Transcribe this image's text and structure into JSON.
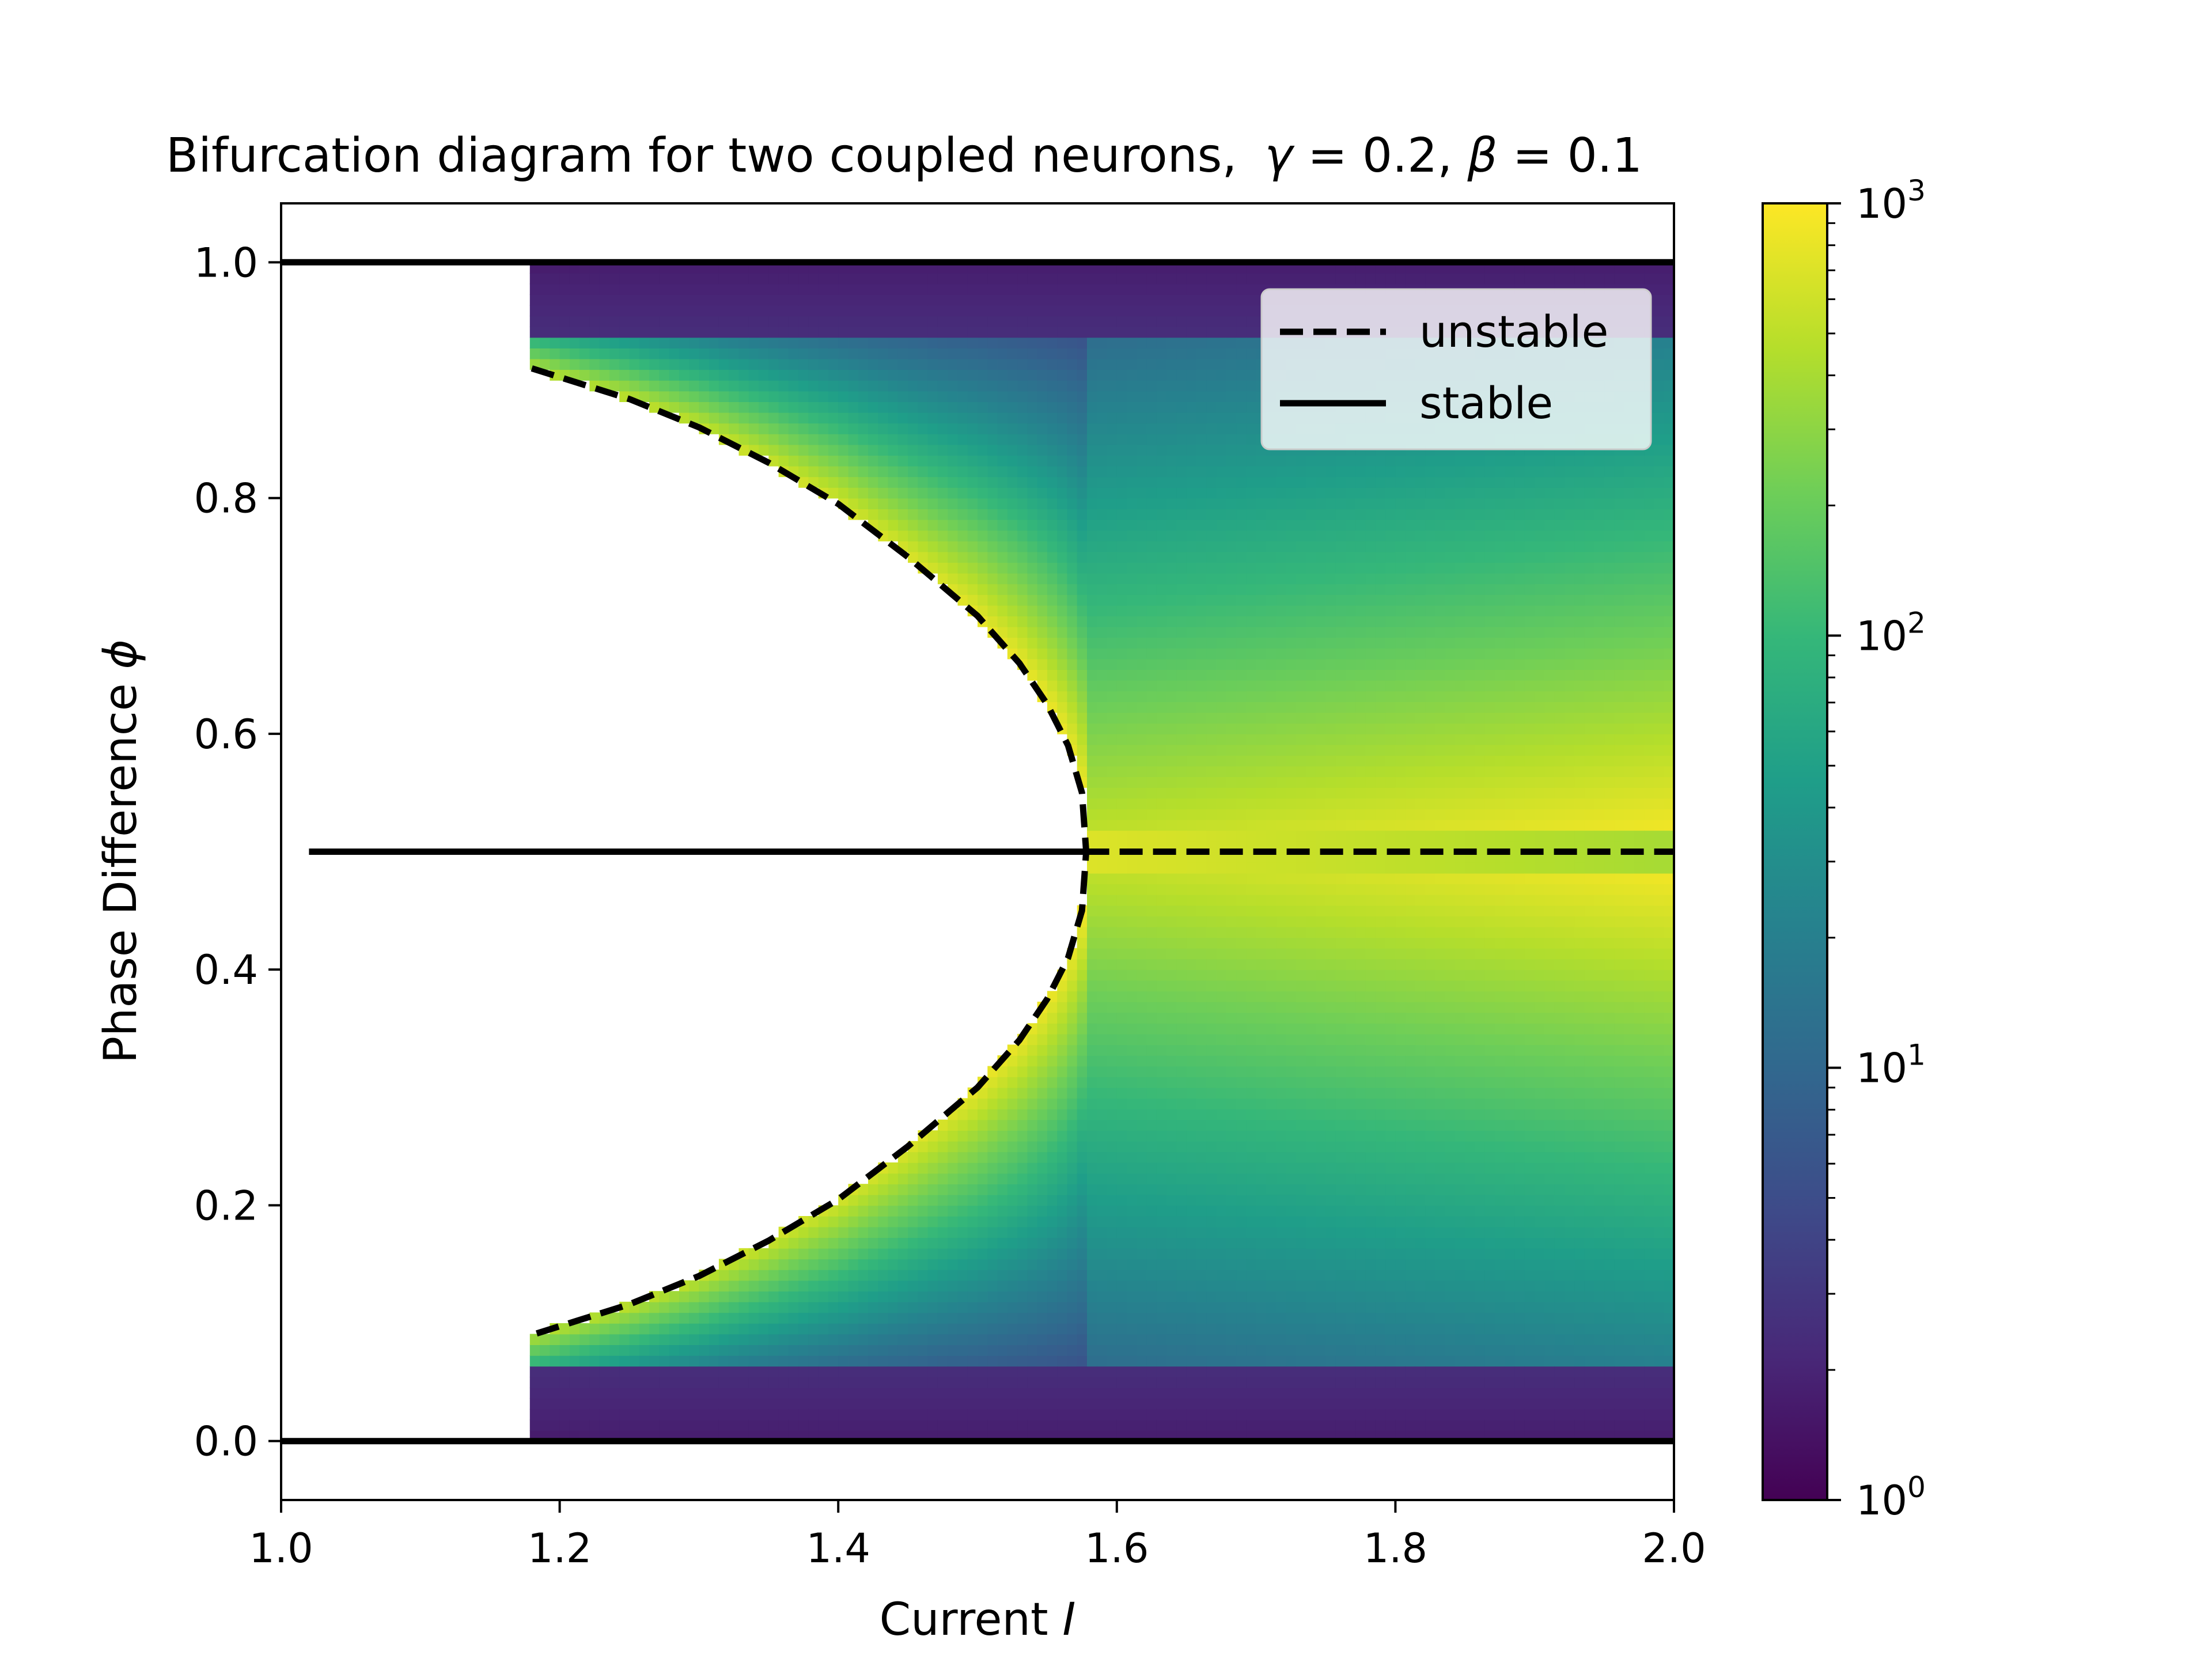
{
  "chart_data": {
    "type": "heatmap",
    "title": "Bifurcation diagram for two coupled neurons,",
    "title_math": {
      "gamma_sym": "γ",
      "gamma_val": " = 0.2, ",
      "beta_sym": "β",
      "beta_val": " = 0.1"
    },
    "xlabel": "Current ",
    "xlabel_var": "I",
    "ylabel": "Phase Difference ",
    "ylabel_var": "ϕ",
    "xlim": [
      1.0,
      2.0
    ],
    "ylim": [
      -0.05,
      1.05
    ],
    "x_ticks": [
      {
        "value": 1.0,
        "label": "1.0"
      },
      {
        "value": 1.2,
        "label": "1.2"
      },
      {
        "value": 1.4,
        "label": "1.4"
      },
      {
        "value": 1.6,
        "label": "1.6"
      },
      {
        "value": 1.8,
        "label": "1.8"
      },
      {
        "value": 2.0,
        "label": "2.0"
      }
    ],
    "y_ticks": [
      {
        "value": 0.0,
        "label": "0.0"
      },
      {
        "value": 0.2,
        "label": "0.2"
      },
      {
        "value": 0.4,
        "label": "0.4"
      },
      {
        "value": 0.6,
        "label": "0.6"
      },
      {
        "value": 0.8,
        "label": "0.8"
      },
      {
        "value": 1.0,
        "label": "1.0"
      }
    ],
    "grid": false,
    "legend": {
      "placement": "upper-right",
      "entries": [
        {
          "label": "unstable",
          "style": "dashed"
        },
        {
          "label": "stable",
          "style": "solid"
        }
      ]
    },
    "colorbar": {
      "scale": "log",
      "colormap": "viridis",
      "range": [
        1,
        1000
      ],
      "ticks": [
        {
          "value": 1,
          "base": "10",
          "exp": "0"
        },
        {
          "value": 10,
          "base": "10",
          "exp": "1"
        },
        {
          "value": 100,
          "base": "10",
          "exp": "2"
        },
        {
          "value": 1000,
          "base": "10",
          "exp": "3"
        }
      ]
    },
    "bifurcation_point": {
      "I": 1.578,
      "phi": 0.5
    },
    "saddle_node_point": {
      "I": 1.18,
      "phi_upper": 0.91,
      "phi_lower": 0.09
    },
    "series": [
      {
        "name": "stable",
        "points": [
          [
            1.02,
            0.5
          ],
          [
            1.578,
            0.5
          ]
        ]
      },
      {
        "name": "stable",
        "points": [
          [
            1.0,
            1.0
          ],
          [
            2.0,
            1.0
          ]
        ]
      },
      {
        "name": "stable",
        "points": [
          [
            1.0,
            0.0
          ],
          [
            2.0,
            0.0
          ]
        ]
      },
      {
        "name": "unstable",
        "points": [
          [
            1.578,
            0.5
          ],
          [
            2.0,
            0.5
          ]
        ]
      },
      {
        "name": "unstable",
        "points": [
          [
            1.18,
            0.91
          ],
          [
            1.25,
            0.884
          ],
          [
            1.3,
            0.86
          ],
          [
            1.35,
            0.83
          ],
          [
            1.4,
            0.795
          ],
          [
            1.45,
            0.75
          ],
          [
            1.5,
            0.7
          ],
          [
            1.53,
            0.66
          ],
          [
            1.55,
            0.625
          ],
          [
            1.565,
            0.59
          ],
          [
            1.575,
            0.55
          ],
          [
            1.578,
            0.5
          ],
          [
            1.575,
            0.45
          ],
          [
            1.565,
            0.41
          ],
          [
            1.55,
            0.375
          ],
          [
            1.53,
            0.34
          ],
          [
            1.5,
            0.3
          ],
          [
            1.45,
            0.25
          ],
          [
            1.4,
            0.205
          ],
          [
            1.35,
            0.17
          ],
          [
            1.3,
            0.14
          ],
          [
            1.25,
            0.116
          ],
          [
            1.18,
            0.09
          ]
        ]
      }
    ]
  }
}
